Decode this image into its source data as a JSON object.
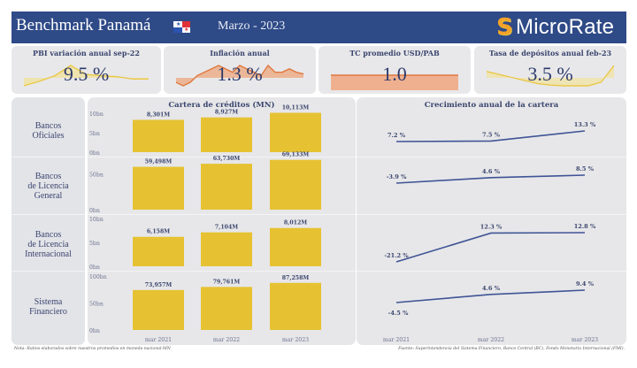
{
  "header": {
    "title": "Benchmark Panamá",
    "flag_icon": "panama-flag-icon",
    "period": "Marzo - 2023",
    "logo_mark": "S",
    "logo_text": "MicroRate",
    "colors": {
      "bar": "#2e4a87",
      "logo_orange": "#f2a229",
      "logo_yellow": "#e8c23a"
    }
  },
  "kpis": [
    {
      "title": "PBI variación anual sep-22",
      "value": "9.5 %",
      "spark_color": "#e9c84a",
      "spark_fill": "#f1e29a",
      "sparkline": [
        -6,
        -2,
        3,
        12,
        4,
        3,
        2,
        0,
        0
      ]
    },
    {
      "title": "Inflación anual",
      "value": "1.3 %",
      "spark_color": "#e07840",
      "spark_fill": "#eea77c",
      "sparkline": [
        -2,
        -3,
        -2,
        0,
        1,
        2,
        3,
        2,
        1,
        3,
        2,
        1,
        0,
        3,
        1,
        1,
        2,
        1,
        0.5
      ]
    },
    {
      "title": "TC promedio USD/PAB",
      "value": "1.0",
      "spark_color": "#e07840",
      "spark_fill": "#efb08f",
      "sparkline": [
        1,
        1,
        1,
        1,
        1
      ]
    },
    {
      "title": "Tasa de depósitos anual feb-23",
      "value": "3.5 %",
      "spark_color": "#e9c84a",
      "spark_fill": "#f2e3a0",
      "sparkline": [
        5,
        4.6,
        4.2,
        3.8,
        3.4,
        3.2,
        3.1,
        3.1,
        3.1,
        3.6,
        5.8
      ]
    }
  ],
  "segments": [
    {
      "label_lines": [
        "Bancos",
        "Oficiales"
      ]
    },
    {
      "label_lines": [
        "Bancos",
        "de Licencia",
        "General"
      ]
    },
    {
      "label_lines": [
        "Bancos",
        "de Licencia",
        "Internacional"
      ]
    },
    {
      "label_lines": [
        "Sistema",
        "Financiero"
      ]
    }
  ],
  "chart_data": [
    {
      "type": "bar",
      "title": "Cartera de créditos (MN)",
      "categories": [
        "mar 2021",
        "mar 2022",
        "mar 2023"
      ],
      "bar_color": "#e6c232",
      "series": [
        {
          "name": "Bancos Oficiales",
          "values": [
            8301,
            8927,
            10113
          ],
          "labels": [
            "8,301M",
            "8,927M",
            "10,113M"
          ],
          "ylim": [
            0,
            10000
          ],
          "ticks": [
            0,
            5000,
            10000
          ],
          "tick_labels": [
            "0bn",
            "5bn",
            "10bn"
          ]
        },
        {
          "name": "Bancos de Licencia General",
          "values": [
            59498,
            63730,
            69133
          ],
          "labels": [
            "59,498M",
            "63,730M",
            "69,133M"
          ],
          "ylim": [
            0,
            70000
          ],
          "ticks": [
            0,
            50000
          ],
          "tick_labels": [
            "0bn",
            "50bn"
          ]
        },
        {
          "name": "Bancos de Licencia Internacional",
          "values": [
            6158,
            7104,
            8012
          ],
          "labels": [
            "6,158M",
            "7,104M",
            "8,012M"
          ],
          "ylim": [
            0,
            10000
          ],
          "ticks": [
            0,
            5000,
            10000
          ],
          "tick_labels": [
            "0bn",
            "5bn",
            "10bn"
          ]
        },
        {
          "name": "Sistema Financiero",
          "values": [
            73957,
            79761,
            87258
          ],
          "labels": [
            "73,957M",
            "79,761M",
            "87,258M"
          ],
          "ylim": [
            0,
            100000
          ],
          "ticks": [
            0,
            50000,
            100000
          ],
          "tick_labels": [
            "0bn",
            "50bn",
            "100bn"
          ]
        }
      ]
    },
    {
      "type": "line",
      "title": "Crecimiento anual de la cartera",
      "categories": [
        "mar 2021",
        "mar 2022",
        "mar 2023"
      ],
      "line_color": "#3f5496",
      "series": [
        {
          "name": "Bancos Oficiales",
          "values": [
            7.2,
            7.5,
            13.3
          ],
          "labels": [
            "7.2 %",
            "7.5 %",
            "13.3 %"
          ]
        },
        {
          "name": "Bancos de Licencia General",
          "values": [
            -3.9,
            4.6,
            8.5
          ],
          "labels": [
            "-3.9 %",
            "4.6 %",
            "8.5 %"
          ]
        },
        {
          "name": "Bancos de Licencia Internacional",
          "values": [
            -21.2,
            12.3,
            12.8
          ],
          "labels": [
            "-21.2 %",
            "12.3 %",
            "12.8 %"
          ]
        },
        {
          "name": "Sistema Financiero",
          "values": [
            -4.5,
            4.6,
            9.4
          ],
          "labels": [
            "-4.5 %",
            "4.6 %",
            "9.4 %"
          ]
        }
      ]
    }
  ],
  "footer": {
    "note": "Nota: Ratios elaborados sobre nuestros promedios en moneda nacional-MN.",
    "source": "Fuente: Superintendencia del Sistema Financiero, Banco Central (BC), Fondo Monetario Internacional (FMI)."
  }
}
